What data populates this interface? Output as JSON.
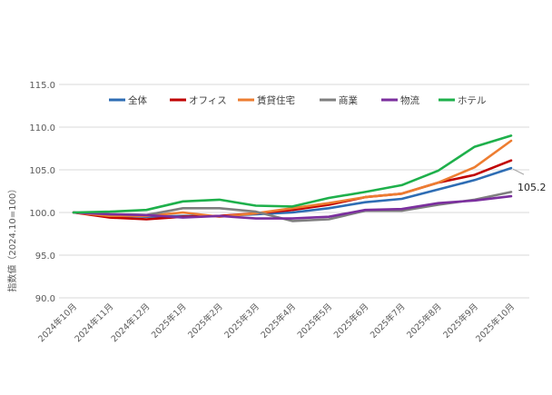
{
  "chart_data": {
    "type": "line",
    "title": "",
    "xlabel": "",
    "ylabel": "指数値（2024.10=100）",
    "ylim": [
      90,
      115
    ],
    "yticks": [
      "90.0",
      "95.0",
      "100.0",
      "105.0",
      "110.0",
      "115.0"
    ],
    "yticks_values": [
      90,
      95,
      100,
      105,
      110,
      115
    ],
    "grid": true,
    "legend_position": "top",
    "categories": [
      "2024年10月",
      "2024年11月",
      "2024年12月",
      "2025年1月",
      "2025年2月",
      "2025年3月",
      "2025年4月",
      "2025年5月",
      "2025年6月",
      "2025年7月",
      "2025年8月",
      "2025年9月",
      "2025年10月"
    ],
    "series": [
      {
        "name": "全体",
        "color": "#2e6db4",
        "values": [
          100.0,
          99.6,
          99.5,
          99.6,
          99.6,
          99.8,
          100.0,
          100.5,
          101.2,
          101.6,
          102.7,
          103.8,
          105.2
        ]
      },
      {
        "name": "オフィス",
        "color": "#c00000",
        "values": [
          100.0,
          99.4,
          99.2,
          99.5,
          99.6,
          99.9,
          100.3,
          100.9,
          101.8,
          102.2,
          103.5,
          104.4,
          106.1
        ]
      },
      {
        "name": "賃貸住宅",
        "color": "#ed7d31",
        "values": [
          100.0,
          99.6,
          99.6,
          100.0,
          99.5,
          99.9,
          100.5,
          101.1,
          101.8,
          102.2,
          103.5,
          105.3,
          108.4
        ]
      },
      {
        "name": "商業",
        "color": "#7f7f7f",
        "values": [
          100.0,
          99.8,
          99.7,
          100.5,
          100.5,
          100.1,
          99.0,
          99.2,
          100.2,
          100.2,
          100.9,
          101.5,
          102.4
        ]
      },
      {
        "name": "物流",
        "color": "#7b2f9e",
        "values": [
          100.0,
          99.8,
          99.7,
          99.4,
          99.6,
          99.3,
          99.3,
          99.5,
          100.3,
          100.4,
          101.1,
          101.4,
          101.9
        ]
      },
      {
        "name": "ホテル",
        "color": "#1eb04b",
        "values": [
          100.0,
          100.1,
          100.3,
          101.3,
          101.5,
          100.8,
          100.7,
          101.7,
          102.4,
          103.2,
          104.9,
          107.7,
          109.0
        ]
      }
    ],
    "annotations": [
      {
        "text": "105.2",
        "series": "全体",
        "category": "2025年10月"
      }
    ]
  }
}
